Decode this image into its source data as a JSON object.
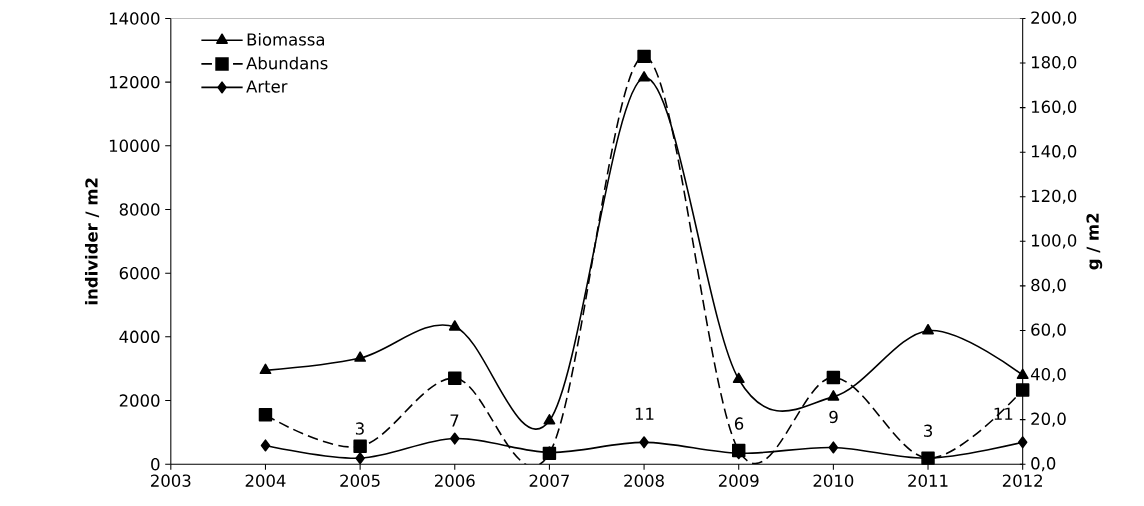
{
  "chart_data": {
    "type": "line",
    "ylabel": "individer / m2",
    "y2label": "g / m2",
    "x": [
      2004,
      2005,
      2006,
      2007,
      2008,
      2009,
      2010,
      2011,
      2012
    ],
    "xlim": [
      2003,
      2012
    ],
    "xticks": [
      2003,
      2004,
      2005,
      2006,
      2007,
      2008,
      2009,
      2010,
      2011,
      2012
    ],
    "ylim": [
      0,
      14000
    ],
    "yticks": [
      0,
      2000,
      4000,
      6000,
      8000,
      10000,
      12000,
      14000
    ],
    "y2lim": [
      0,
      200
    ],
    "y2ticks": [
      {
        "value": 0,
        "label": "0,0"
      },
      {
        "value": 20,
        "label": "20,0"
      },
      {
        "value": 40,
        "label": "40,0"
      },
      {
        "value": 60,
        "label": "60,0"
      },
      {
        "value": 80,
        "label": "80,0"
      },
      {
        "value": 100,
        "label": "100,0"
      },
      {
        "value": 120,
        "label": "120,0"
      },
      {
        "value": 140,
        "label": "140,0"
      },
      {
        "value": 160,
        "label": "160,0"
      },
      {
        "value": 180,
        "label": "180,0"
      },
      {
        "value": 200,
        "label": "200,0"
      }
    ],
    "legend": "top left",
    "annotations": [
      "3",
      "7",
      "11",
      "6",
      "9",
      "3",
      "11"
    ],
    "series": [
      {
        "name": "Biomassa",
        "color": "#000000",
        "axis": "y2",
        "marker": "triangle",
        "line_style": "solid",
        "values": [
          42.1,
          47.6,
          61.6,
          19.5,
          173.4,
          38.1,
          30.2,
          59.9,
          39.9
        ]
      },
      {
        "name": "Abundans",
        "color": "#000000",
        "axis": "y",
        "marker": "square",
        "line_style": "dashed",
        "values": [
          1550,
          560,
          2700,
          340,
          12810,
          430,
          2720,
          190,
          2330
        ]
      },
      {
        "name": "Arter",
        "color": "#000000",
        "axis": "y2",
        "marker": "diamond",
        "line_style": "solid",
        "values": [
          8.4,
          2.7,
          11.5,
          5.3,
          9.8,
          4.9,
          7.5,
          2.7,
          9.8
        ]
      }
    ]
  }
}
